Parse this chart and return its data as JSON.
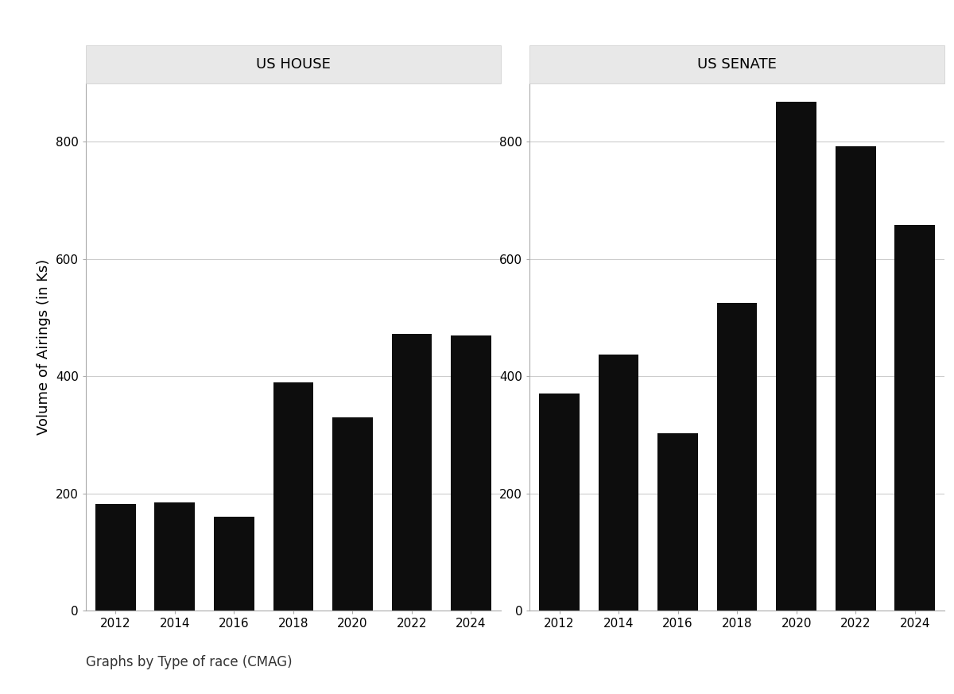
{
  "years": [
    2012,
    2014,
    2016,
    2018,
    2020,
    2022,
    2024
  ],
  "house_values": [
    182,
    185,
    160,
    390,
    330,
    472,
    470
  ],
  "senate_values": [
    370,
    437,
    303,
    525,
    868,
    793,
    658
  ],
  "bar_color": "#0d0d0d",
  "panel_titles": [
    "US HOUSE",
    "US SENATE"
  ],
  "ylabel": "Volume of Airings (in Ks)",
  "ylim": [
    0,
    900
  ],
  "yticks": [
    0,
    200,
    400,
    600,
    800
  ],
  "footer_text": "Graphs by Type of race (CMAG)",
  "strip_bg": "#e8e8e8",
  "plot_bg": "#ffffff",
  "grid_color": "#cccccc",
  "title_fontsize": 13,
  "tick_fontsize": 11,
  "ylabel_fontsize": 13,
  "footer_fontsize": 12
}
